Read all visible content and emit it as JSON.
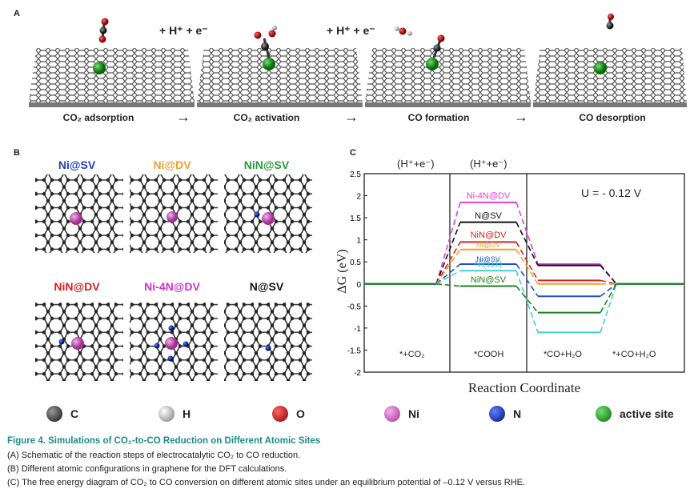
{
  "panel_a": {
    "label": "A",
    "plus1": "+ H⁺ + e⁻",
    "plus2": "+ H⁺ + e⁻",
    "steps": [
      "CO₂ adsorption",
      "CO₂ activation",
      "CO formation",
      "CO desorption"
    ],
    "arrow": "→"
  },
  "panel_b": {
    "label": "B",
    "configs": [
      {
        "name": "Ni@SV",
        "color": "#1f3fbf"
      },
      {
        "name": "Ni@DV",
        "color": "#f0a030"
      },
      {
        "name": "NiN@SV",
        "color": "#2a9a3a"
      },
      {
        "name": "NiN@DV",
        "color": "#d42020"
      },
      {
        "name": "Ni-4N@DV",
        "color": "#d030d0"
      },
      {
        "name": "N@SV",
        "color": "#111111"
      }
    ]
  },
  "panel_c": {
    "label": "C",
    "potential": "U = - 0.12 V",
    "top_labels": [
      "(H⁺+e⁻)",
      "(H⁺+e⁻)"
    ],
    "bottom_labels": [
      "*+CO₂",
      "*COOH",
      "*CO+H₂O",
      "*+CO+H₂O"
    ]
  },
  "chart_data": {
    "type": "line",
    "xlabel": "Reaction Coordinate",
    "ylabel": "ΔG (eV)",
    "ylim": [
      -2,
      2.5
    ],
    "y_ticks": [
      "2.5",
      "2",
      "1.5",
      "1",
      "0.5",
      "0",
      "-0.5",
      "-1",
      "-1.5",
      "-2"
    ],
    "states": [
      "*+CO₂",
      "*COOH",
      "*CO+H₂O",
      "*+CO+H₂O"
    ],
    "series": [
      {
        "name": "Ni-4N@DV",
        "color": "#e040e0",
        "values": [
          0,
          1.85,
          0.45,
          0
        ]
      },
      {
        "name": "N@SV",
        "color": "#111111",
        "values": [
          0,
          1.4,
          0.42,
          0
        ]
      },
      {
        "name": "NiN@DV",
        "color": "#e02020",
        "values": [
          0,
          0.95,
          0.08,
          0
        ]
      },
      {
        "name": "Ni@DV",
        "color": "#f0a020",
        "values": [
          0,
          0.78,
          0.0,
          0
        ]
      },
      {
        "name": "Ni@SV",
        "color": "#2050d0",
        "values": [
          0,
          0.45,
          -0.28,
          0
        ]
      },
      {
        "name": "Ni(111)",
        "color": "#40d0d0",
        "values": [
          0,
          0.3,
          -1.1,
          0
        ]
      },
      {
        "name": "NiN@SV",
        "color": "#208020",
        "values": [
          0,
          -0.05,
          -0.65,
          0
        ]
      }
    ]
  },
  "legend": [
    {
      "label": "C",
      "color": "#111111"
    },
    {
      "label": "H",
      "color": "#dddddd"
    },
    {
      "label": "O",
      "color": "#cc0000"
    },
    {
      "label": "Ni",
      "color": "#d060c0"
    },
    {
      "label": "N",
      "color": "#1030b0"
    },
    {
      "label": "active site",
      "color": "#20a020"
    }
  ],
  "caption": {
    "title": "Figure 4.  Simulations of CO₂-to-CO Reduction on Different Atomic Sites",
    "lines": [
      "(A) Schematic of the reaction steps of electrocatalytic CO₂ to CO reduction.",
      "(B) Different atomic configurations in graphene for the DFT calculations.",
      "(C) The free energy diagram of CO₂ to CO conversion on different atomic sites under an equilibrium potential of –0.12 V versus RHE."
    ]
  }
}
